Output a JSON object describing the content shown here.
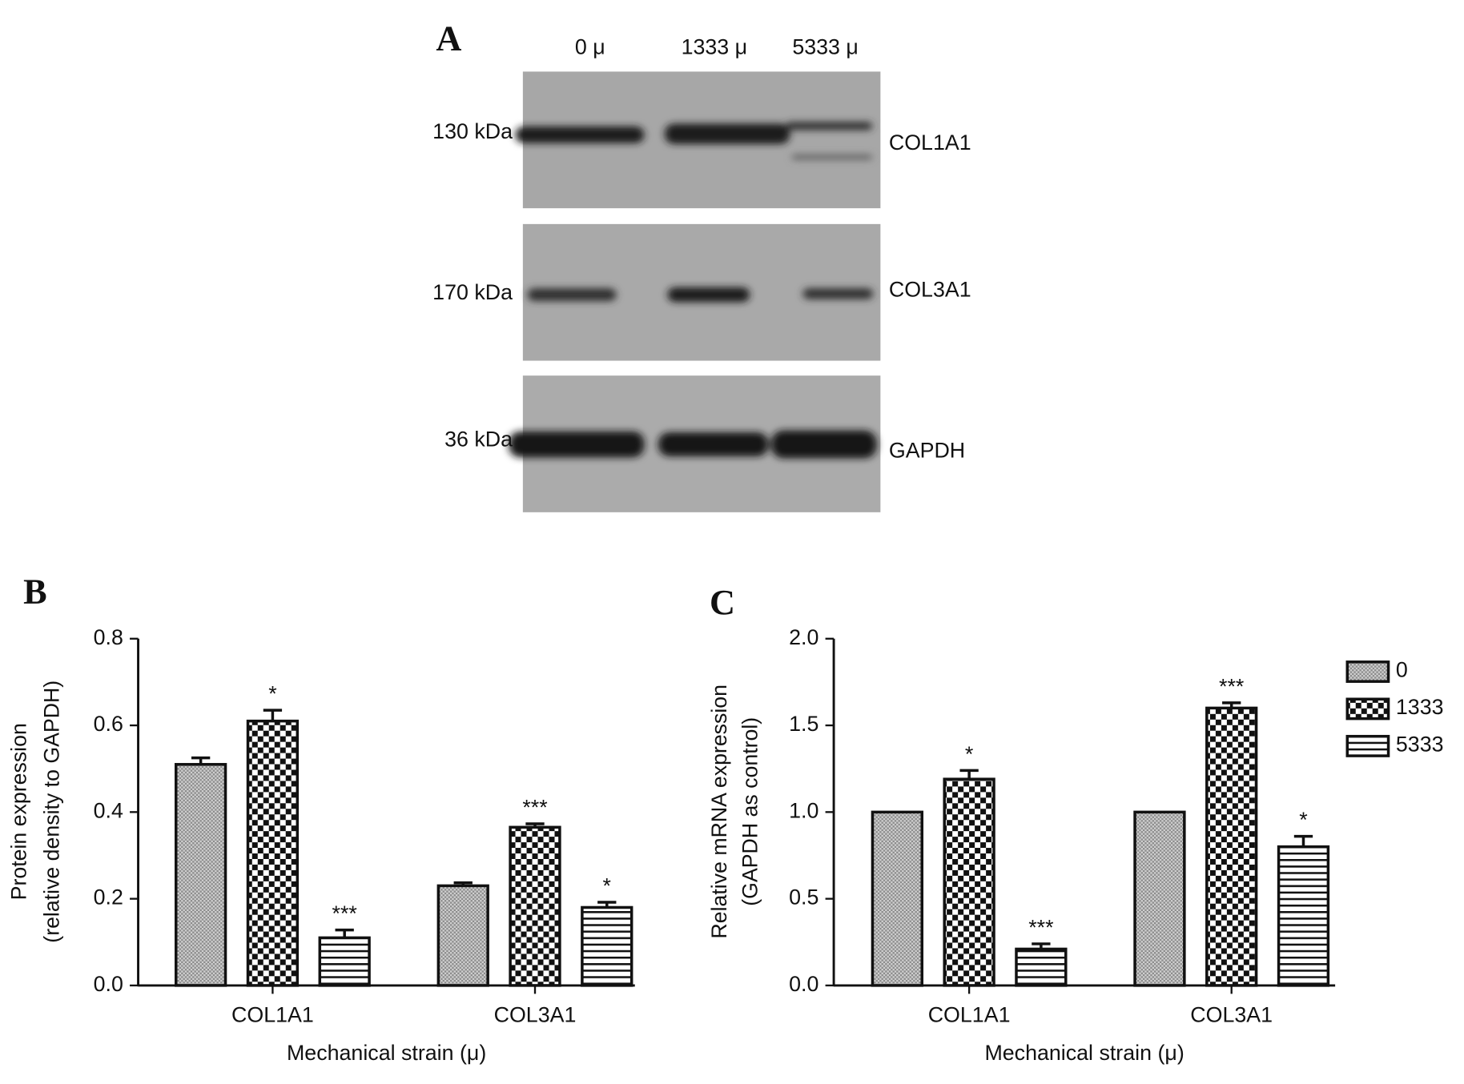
{
  "panel_a": {
    "label": "A",
    "lanes": [
      "0 μ",
      "1333 μ",
      "5333 μ"
    ],
    "blots": [
      {
        "weight": "130 kDa",
        "protein": "COL1A1"
      },
      {
        "weight": "170 kDa",
        "protein": "COL3A1"
      },
      {
        "weight": "36 kDa",
        "protein": "GAPDH"
      }
    ]
  },
  "chart_data": [
    {
      "type": "bar",
      "panel_label": "B",
      "ylabel": [
        "Protein expression",
        "(relative density to GAPDH)"
      ],
      "xlabel": "Mechanical strain (μ)",
      "categories": [
        "COL1A1",
        "COL3A1"
      ],
      "ylim": [
        0,
        0.8
      ],
      "yticks": [
        {
          "value": 0,
          "label": "0.0"
        },
        0.2,
        0.4,
        0.6,
        0.8
      ],
      "legend": false,
      "series": [
        {
          "pattern": "crosshatch",
          "color": "#8c8c8c",
          "values": [
            0.51,
            0.23
          ],
          "errors": [
            0.015,
            0.007
          ]
        },
        {
          "pattern": "checker",
          "color": "#111111",
          "values": [
            0.61,
            0.365
          ],
          "errors": [
            0.025,
            0.008
          ],
          "annotations": [
            "*",
            "***"
          ]
        },
        {
          "pattern": "hstripe",
          "color": "#111111",
          "values": [
            0.11,
            0.18
          ],
          "errors": [
            0.018,
            0.012
          ],
          "annotations": [
            "***",
            "*"
          ]
        }
      ]
    },
    {
      "type": "bar",
      "panel_label": "C",
      "ylabel": [
        "Relative mRNA expression",
        "(GAPDH as control)"
      ],
      "xlabel": "Mechanical strain (μ)",
      "categories": [
        "COL1A1",
        "COL3A1"
      ],
      "ylim": [
        0,
        2
      ],
      "yticks": [
        {
          "value": 0,
          "label": "0.0"
        },
        0.5,
        {
          "value": 1,
          "label": "1.0"
        },
        1.5,
        {
          "value": 2,
          "label": "2.0"
        }
      ],
      "legend": "right",
      "series": [
        {
          "name": "0",
          "pattern": "crosshatch",
          "color": "#8c8c8c",
          "values": [
            1.0,
            1.0
          ],
          "errors": [
            0,
            0
          ]
        },
        {
          "name": "1333",
          "pattern": "checker",
          "color": "#111111",
          "values": [
            1.19,
            1.6
          ],
          "errors": [
            0.05,
            0.03
          ],
          "annotations": [
            "*",
            "***"
          ]
        },
        {
          "name": "5333",
          "pattern": "hstripe",
          "color": "#111111",
          "values": [
            0.21,
            0.8
          ],
          "errors": [
            0.03,
            0.06
          ],
          "annotations": [
            "***",
            "*"
          ]
        }
      ]
    }
  ]
}
